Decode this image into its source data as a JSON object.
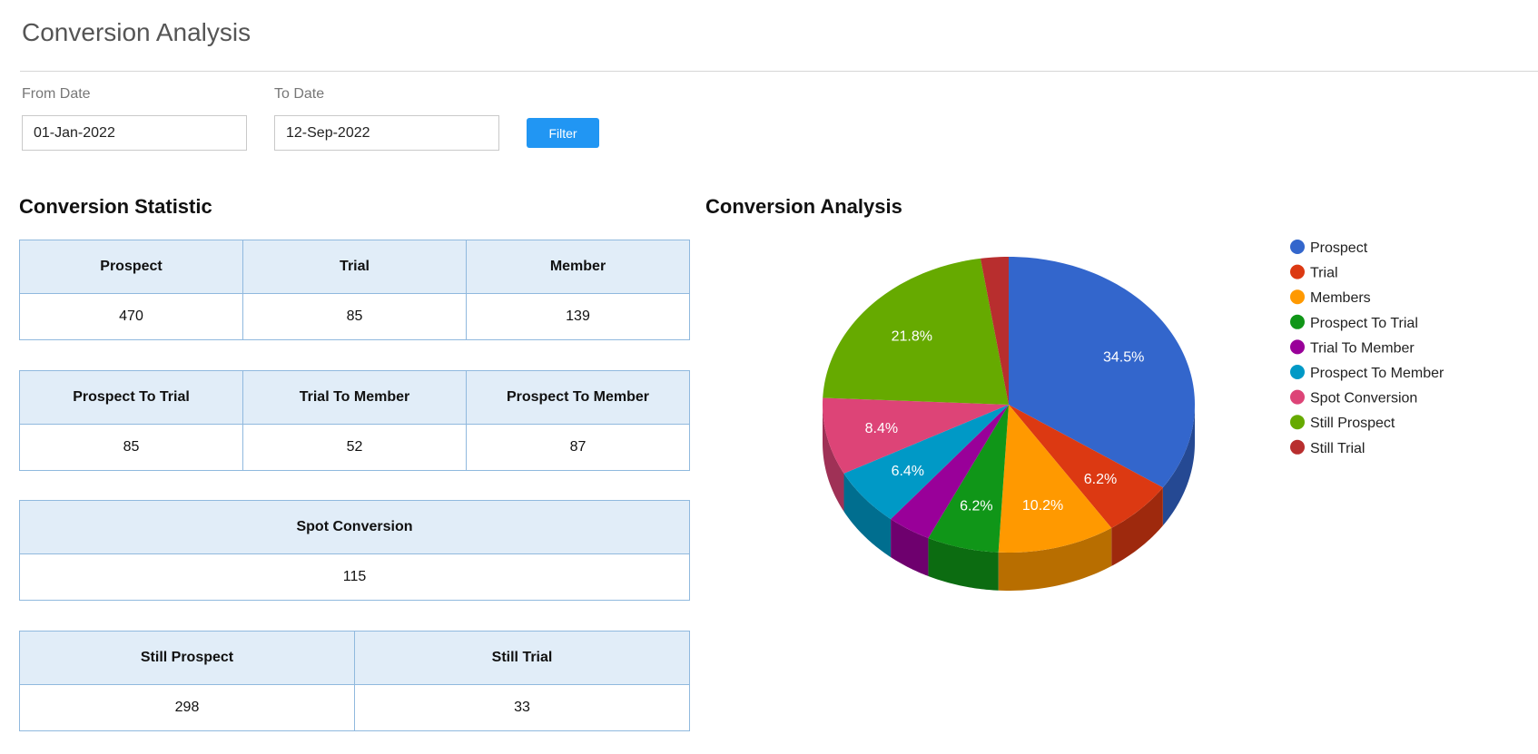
{
  "page": {
    "title": "Conversion Analysis"
  },
  "filters": {
    "from_label": "From Date",
    "from_value": "01-Jan-2022",
    "to_label": "To Date",
    "to_value": "12-Sep-2022",
    "filter_label": "Filter"
  },
  "statistic": {
    "title": "Conversion Statistic",
    "table1": {
      "headers": [
        "Prospect",
        "Trial",
        "Member"
      ],
      "values": [
        "470",
        "85",
        "139"
      ]
    },
    "table2": {
      "headers": [
        "Prospect To Trial",
        "Trial To Member",
        "Prospect To Member"
      ],
      "values": [
        "85",
        "52",
        "87"
      ]
    },
    "table3": {
      "headers": [
        "Spot Conversion"
      ],
      "values": [
        "115"
      ]
    },
    "table4": {
      "headers": [
        "Still Prospect",
        "Still Trial"
      ],
      "values": [
        "298",
        "33"
      ]
    }
  },
  "chart_data": {
    "type": "pie",
    "title": "Conversion Analysis",
    "style": "3d",
    "legend_position": "right",
    "categories": [
      "Prospect",
      "Trial",
      "Members",
      "Prospect To Trial",
      "Trial To Member",
      "Prospect To Member",
      "Spot Conversion",
      "Still Prospect",
      "Still Trial"
    ],
    "values": [
      470,
      85,
      139,
      85,
      52,
      87,
      115,
      298,
      33
    ],
    "data_labels": [
      "34.5%",
      "6.2%",
      "10.2%",
      "6.2%",
      "",
      "6.4%",
      "8.4%",
      "21.8%",
      ""
    ],
    "colors": [
      "#3366cc",
      "#dc3912",
      "#ff9900",
      "#109618",
      "#990099",
      "#0099c6",
      "#dd4477",
      "#66aa00",
      "#b82e2e"
    ]
  }
}
